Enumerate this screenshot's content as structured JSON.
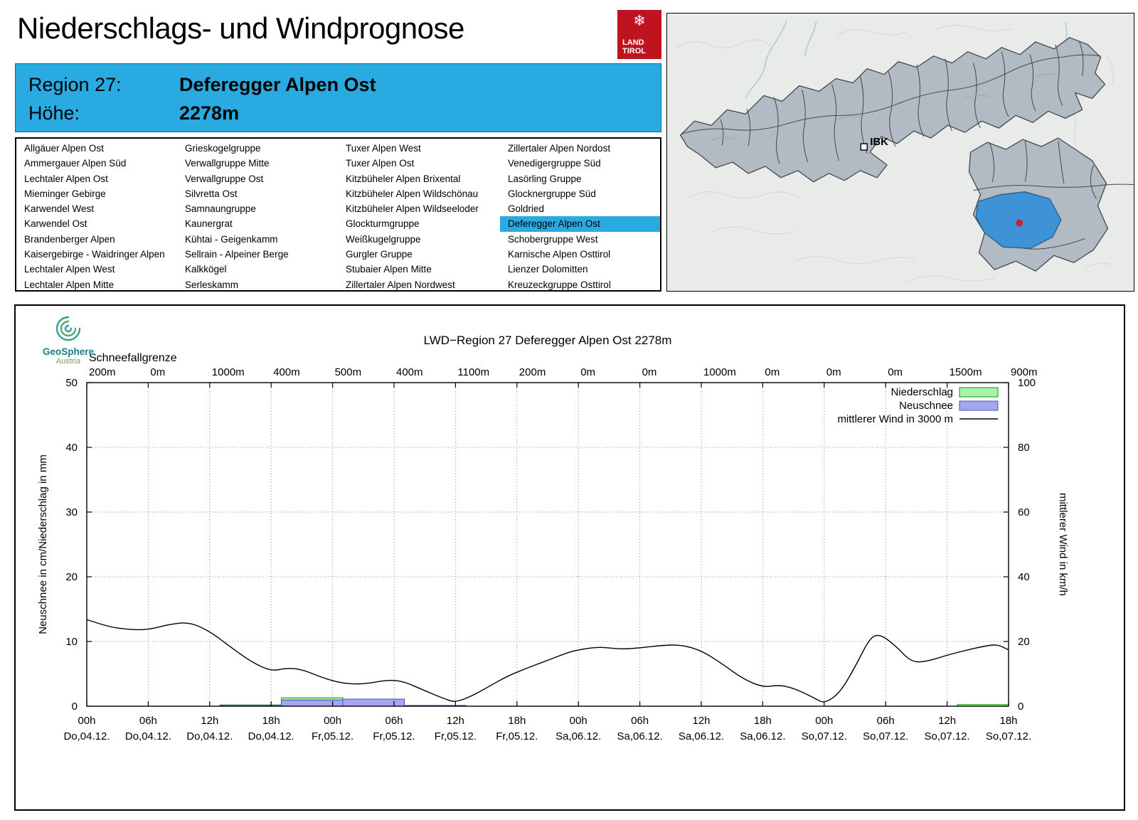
{
  "header": {
    "title": "Niederschlags- und Windprognose",
    "logo_line1": "LAND",
    "logo_line2": "TIROL"
  },
  "region_info": {
    "region_label": "Region 27:",
    "region_value": "Deferegger Alpen Ost",
    "altitude_label": "Höhe:",
    "altitude_value": "2278m"
  },
  "region_list": {
    "selected": "Deferegger Alpen Ost",
    "columns": [
      [
        "Allgäuer Alpen Ost",
        "Ammergauer Alpen Süd",
        "Lechtaler Alpen Ost",
        "Mieminger Gebirge",
        "Karwendel West",
        "Karwendel Ost",
        "Brandenberger Alpen",
        "Kaisergebirge - Waidringer Alpen",
        "Lechtaler Alpen West",
        "Lechtaler Alpen Mitte"
      ],
      [
        "Grieskogelgruppe",
        "Verwallgruppe Mitte",
        "Verwallgruppe Ost",
        "Silvretta Ost",
        "Samnaungruppe",
        "Kaunergrat",
        "Kühtai - Geigenkamm",
        "Sellrain - Alpeiner Berge",
        "Kalkkögel",
        "Serleskamm"
      ],
      [
        "Tuxer Alpen West",
        "Tuxer Alpen Ost",
        "Kitzbüheler Alpen Brixental",
        "Kitzbüheler Alpen Wildschönau",
        "Kitzbüheler Alpen Wildseeloder",
        "Glockturmgruppe",
        "Weißkugelgruppe",
        "Gurgler Gruppe",
        "Stubaier Alpen Mitte",
        "Zillertaler Alpen Nordwest"
      ],
      [
        "Zillertaler Alpen Nordost",
        "Venedigergruppe Süd",
        "Lasörling Gruppe",
        "Glocknergruppe Süd",
        "Goldried",
        "Deferegger Alpen Ost",
        "Schobergruppe West",
        "Karnische Alpen Osttirol",
        "Lienzer Dolomitten",
        "Kreuzeckgruppe Osttirol"
      ]
    ]
  },
  "map": {
    "ibk_label": "IBK",
    "selected_region": "Deferegger Alpen Ost"
  },
  "geosphere": {
    "name": "GeoSphere",
    "country": "Austria"
  },
  "colors": {
    "accent_blue": "#29abe2",
    "precip_fill": "#aaf0aa",
    "precip_stroke": "#00a400",
    "snow_fill": "#a5a5f0",
    "snow_stroke": "#4e4ec0",
    "wind_line": "#000000",
    "map_region_fill": "#b2bac3",
    "map_region_border": "#41474d",
    "map_selected_fill": "#3d93d6",
    "location_dot": "#c8252c",
    "logo_red": "#bf1420"
  },
  "chart_data": {
    "type": "mixed",
    "title": "LWD−Region 27 Deferegger Alpen Ost 2278m",
    "snowline_label": "Schneefallgrenze",
    "snowline_values": [
      "200m",
      "0m",
      "1000m",
      "400m",
      "500m",
      "400m",
      "1100m",
      "200m",
      "0m",
      "0m",
      "1000m",
      "0m",
      "0m",
      "0m",
      "1500m",
      "900m"
    ],
    "x_ticks": [
      {
        "h": "00h",
        "d": "Do,04.12."
      },
      {
        "h": "06h",
        "d": "Do,04.12."
      },
      {
        "h": "12h",
        "d": "Do,04.12."
      },
      {
        "h": "18h",
        "d": "Do,04.12."
      },
      {
        "h": "00h",
        "d": "Fr,05.12."
      },
      {
        "h": "06h",
        "d": "Fr,05.12."
      },
      {
        "h": "12h",
        "d": "Fr,05.12."
      },
      {
        "h": "18h",
        "d": "Fr,05.12."
      },
      {
        "h": "00h",
        "d": "Sa,06.12."
      },
      {
        "h": "06h",
        "d": "Sa,06.12."
      },
      {
        "h": "12h",
        "d": "Sa,06.12."
      },
      {
        "h": "18h",
        "d": "Sa,06.12."
      },
      {
        "h": "00h",
        "d": "So,07.12."
      },
      {
        "h": "06h",
        "d": "So,07.12."
      },
      {
        "h": "12h",
        "d": "So,07.12."
      },
      {
        "h": "18h",
        "d": "So,07.12."
      }
    ],
    "total_hours": 90,
    "ylabel_left": "Neuschnee in cm/Niederschlag in mm",
    "ylabel_right": "mittlerer Wind in km/h",
    "ylim_left": [
      0,
      50
    ],
    "ylim_right": [
      0,
      100
    ],
    "yticks_left": [
      0,
      10,
      20,
      30,
      40,
      50
    ],
    "yticks_right": [
      0,
      20,
      40,
      60,
      80,
      100
    ],
    "legend": {
      "precip": "Niederschlag",
      "snow": "Neuschnee",
      "wind": "mittlerer Wind in 3000 m"
    },
    "precip_bars": [
      {
        "start": 13,
        "end": 19,
        "value": 0.2
      },
      {
        "start": 19,
        "end": 25,
        "value": 1.3
      },
      {
        "start": 25,
        "end": 31,
        "value": 1.1
      },
      {
        "start": 31,
        "end": 37,
        "value": 0.12
      },
      {
        "start": 85,
        "end": 90,
        "value": 0.25
      }
    ],
    "snow_bars": [
      {
        "start": 13,
        "end": 19,
        "value": 0.15
      },
      {
        "start": 19,
        "end": 25,
        "value": 0.95
      },
      {
        "start": 25,
        "end": 31,
        "value": 1.1
      },
      {
        "start": 31,
        "end": 37,
        "value": 0.1
      }
    ],
    "wind_line_kmh": [
      [
        0,
        26.8
      ],
      [
        2,
        24.6
      ],
      [
        4,
        23.7
      ],
      [
        6,
        23.6
      ],
      [
        8,
        25.3
      ],
      [
        10,
        26.0
      ],
      [
        12,
        23.2
      ],
      [
        14,
        18.4
      ],
      [
        16,
        13.8
      ],
      [
        18,
        10.8
      ],
      [
        19.5,
        11.8
      ],
      [
        21,
        11.4
      ],
      [
        23,
        8.8
      ],
      [
        25,
        7.0
      ],
      [
        27,
        6.8
      ],
      [
        29.5,
        8.2
      ],
      [
        31,
        7.6
      ],
      [
        33,
        4.8
      ],
      [
        35,
        2.2
      ],
      [
        36,
        1.2
      ],
      [
        37.5,
        3.0
      ],
      [
        39,
        5.6
      ],
      [
        41,
        9.2
      ],
      [
        43,
        11.8
      ],
      [
        45,
        14.2
      ],
      [
        47,
        16.6
      ],
      [
        48,
        17.4
      ],
      [
        50,
        18.4
      ],
      [
        52,
        17.6
      ],
      [
        54,
        18.0
      ],
      [
        56,
        18.8
      ],
      [
        58,
        19.0
      ],
      [
        60,
        17.2
      ],
      [
        62,
        13.2
      ],
      [
        64,
        8.6
      ],
      [
        66,
        5.8
      ],
      [
        67.5,
        6.6
      ],
      [
        69,
        5.6
      ],
      [
        71,
        2.6
      ],
      [
        72,
        0.8
      ],
      [
        73.5,
        4.0
      ],
      [
        75,
        12.0
      ],
      [
        76.5,
        21.4
      ],
      [
        77.5,
        22.2
      ],
      [
        79,
        18.6
      ],
      [
        80.5,
        13.6
      ],
      [
        82,
        13.8
      ],
      [
        84,
        15.8
      ],
      [
        86,
        17.4
      ],
      [
        88,
        18.8
      ],
      [
        89,
        19.0
      ],
      [
        90,
        17.4
      ]
    ]
  }
}
